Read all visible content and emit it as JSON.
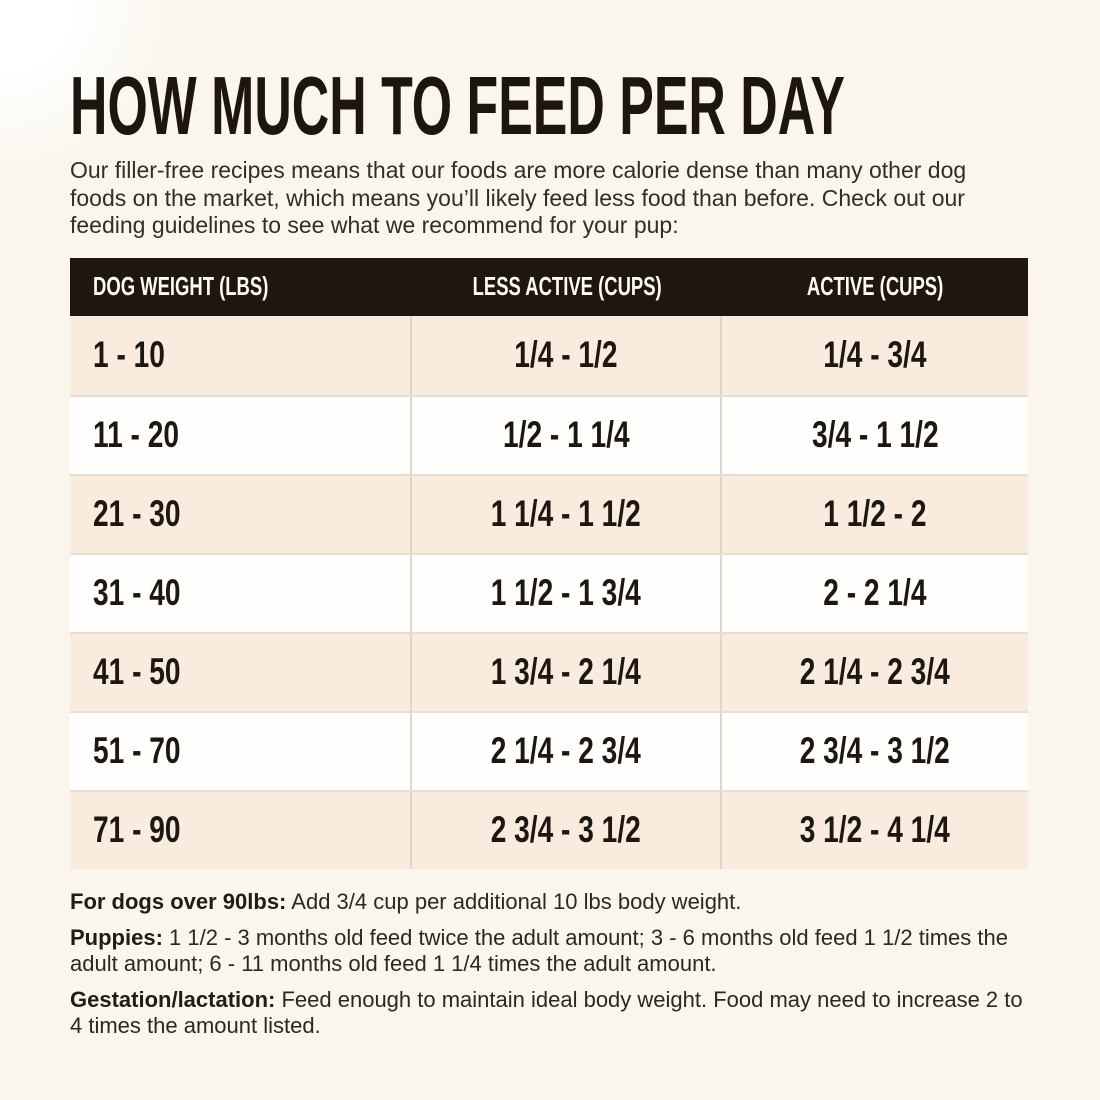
{
  "page": {
    "title": "HOW MUCH TO FEED PER DAY",
    "intro": "Our filler-free recipes means that our foods are more calorie dense than many other dog foods on the market, which means you’ll likely feed less food than before. Check out our feeding guidelines to see what we recommend for your pup:"
  },
  "table": {
    "columns": [
      "DOG WEIGHT (LBS)",
      "LESS ACTIVE (CUPS)",
      "ACTIVE (CUPS)"
    ],
    "rows": [
      [
        "1 - 10",
        "1/4 - 1/2",
        "1/4 - 3/4"
      ],
      [
        "11 - 20",
        "1/2 - 1 1/4",
        "3/4 - 1 1/2"
      ],
      [
        "21 - 30",
        "1 1/4 - 1 1/2",
        "1 1/2 - 2"
      ],
      [
        "31 - 40",
        "1 1/2 - 1 3/4",
        "2 - 2 1/4"
      ],
      [
        "41 - 50",
        "1 3/4 - 2 1/4",
        "2 1/4 - 2 3/4"
      ],
      [
        "51 - 70",
        "2 1/4 - 2 3/4",
        "2 3/4 - 3 1/2"
      ],
      [
        "71 - 90",
        "2 3/4 - 3 1/2",
        "3 1/2 - 4 1/4"
      ]
    ]
  },
  "notes": [
    {
      "label": "For dogs over 90lbs:",
      "text": "Add 3/4 cup per additional 10 lbs body weight."
    },
    {
      "label": "Puppies:",
      "text": "1 1/2 - 3 months old feed twice the adult amount; 3 - 6 months old feed 1 1/2 times the adult amount; 6 - 11 months old feed 1 1/4 times the adult amount."
    },
    {
      "label": "Gestation/lactation:",
      "text": "Feed enough to maintain ideal body weight. Food may need to increase 2 to 4 times the amount listed."
    }
  ],
  "colors": {
    "page_bg": "#faf6ed",
    "header_bg": "#1f1610",
    "header_text": "#fdfbf6",
    "row_alt_bg": "#f9ebdd",
    "row_bg": "#fffefd",
    "body_text": "#2b2723",
    "table_text": "#1d1711"
  }
}
